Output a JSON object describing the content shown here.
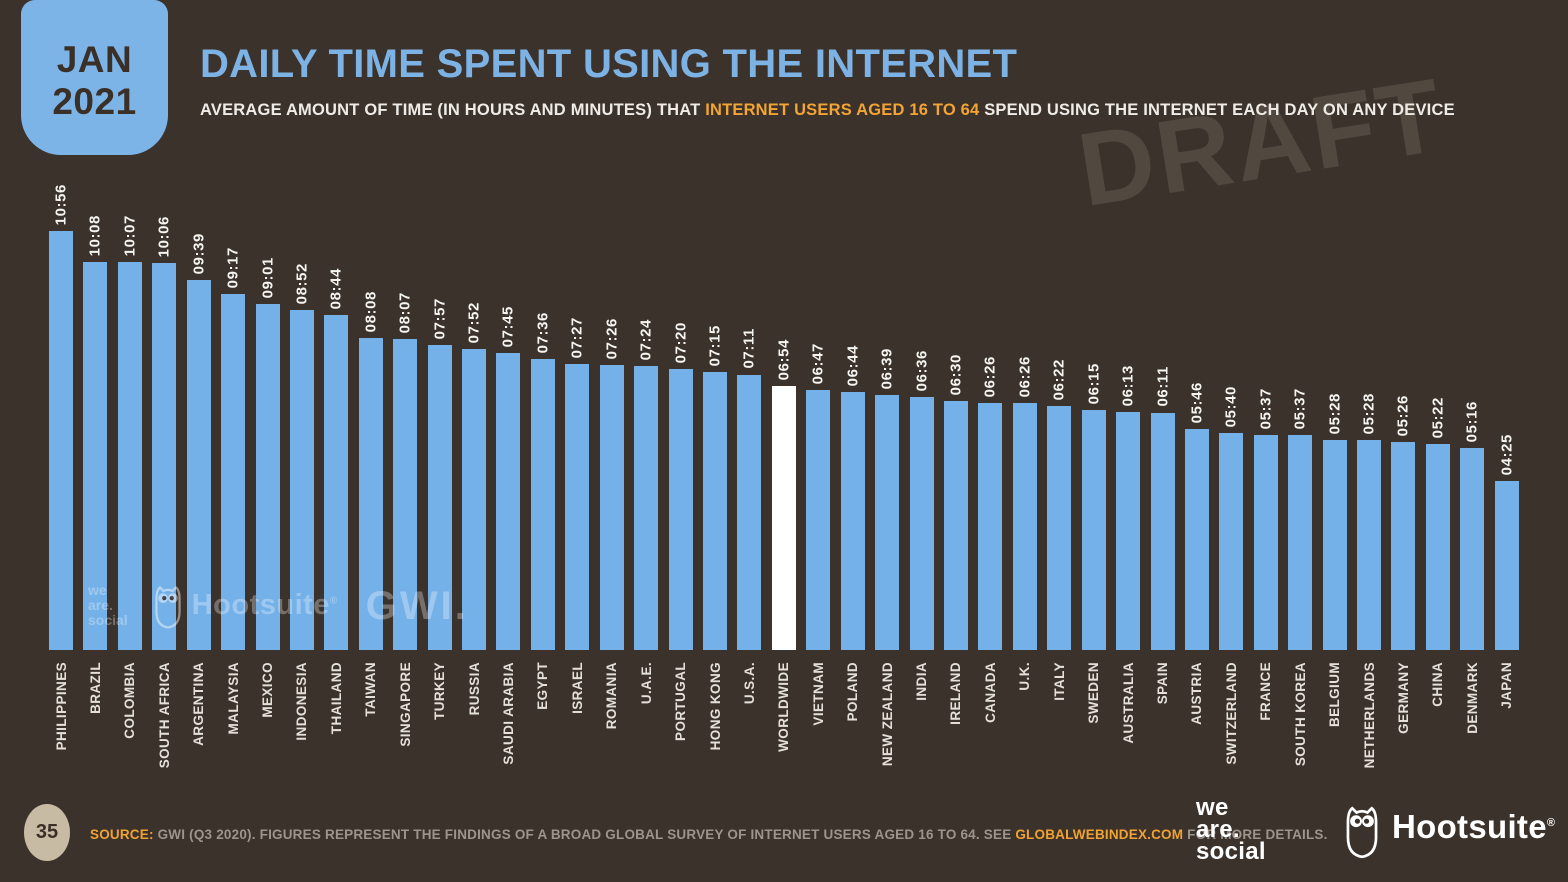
{
  "badge": {
    "month": "JAN",
    "year": "2021"
  },
  "header": {
    "title": "DAILY TIME SPENT USING THE INTERNET",
    "subtitle_prefix": "AVERAGE AMOUNT OF TIME (IN HOURS AND MINUTES) THAT ",
    "subtitle_highlight": "INTERNET USERS AGED 16 TO 64",
    "subtitle_suffix": " SPEND USING THE INTERNET EACH DAY ON ANY DEVICE"
  },
  "draft_watermark": "DRAFT",
  "chart_data": {
    "type": "bar",
    "title": "Daily time spent using the internet (hours:minutes)",
    "unit": "hours:minutes per day",
    "categories": [
      "PHILIPPINES",
      "BRAZIL",
      "COLOMBIA",
      "SOUTH AFRICA",
      "ARGENTINA",
      "MALAYSIA",
      "MEXICO",
      "INDONESIA",
      "THAILAND",
      "TAIWAN",
      "SINGAPORE",
      "TURKEY",
      "RUSSIA",
      "SAUDI ARABIA",
      "EGYPT",
      "ISRAEL",
      "ROMANIA",
      "U.A.E.",
      "PORTUGAL",
      "HONG KONG",
      "U.S.A.",
      "WORLDWIDE",
      "VIETNAM",
      "POLAND",
      "NEW ZEALAND",
      "INDIA",
      "IRELAND",
      "CANADA",
      "U.K.",
      "ITALY",
      "SWEDEN",
      "AUSTRALIA",
      "SPAIN",
      "AUSTRIA",
      "SWITZERLAND",
      "FRANCE",
      "SOUTH KOREA",
      "BELGIUM",
      "NETHERLANDS",
      "GERMANY",
      "CHINA",
      "DENMARK",
      "JAPAN"
    ],
    "values": [
      "10:56",
      "10:08",
      "10:07",
      "10:06",
      "09:39",
      "09:17",
      "09:01",
      "08:52",
      "08:44",
      "08:08",
      "08:07",
      "07:57",
      "07:52",
      "07:45",
      "07:36",
      "07:27",
      "07:26",
      "07:24",
      "07:20",
      "07:15",
      "07:11",
      "06:54",
      "06:47",
      "06:44",
      "06:39",
      "06:36",
      "06:30",
      "06:26",
      "06:26",
      "06:22",
      "06:15",
      "06:13",
      "06:11",
      "05:46",
      "05:40",
      "05:37",
      "05:37",
      "05:28",
      "05:28",
      "05:26",
      "05:22",
      "05:16",
      "04:25"
    ],
    "highlight_category": "WORLDWIDE",
    "bar_color": "#74B1E8",
    "highlight_color": "#FFFFFF",
    "value_label_color": "#F7F5F1",
    "ylim_minutes": [
      0,
      656
    ],
    "grid": false,
    "legend": false
  },
  "chart_watermarks": {
    "wearesocial_line1": "we",
    "wearesocial_line2": "are.",
    "wearesocial_line3": "social",
    "hootsuite": "Hootsuite",
    "registered": "®",
    "gwi": "GWI."
  },
  "footer": {
    "page_number": "35",
    "source_label": "SOURCE:",
    "source_text_1": " GWI (Q3 2020). FIGURES REPRESENT THE FINDINGS OF A BROAD GLOBAL SURVEY OF INTERNET USERS AGED 16 TO 64. SEE ",
    "source_link": "GLOBALWEBINDEX.COM",
    "source_text_2": " FOR MORE DETAILS.",
    "ws_line1": "we",
    "ws_line2": "are.",
    "ws_line3": "social",
    "hootsuite_label": "Hootsuite",
    "registered_mark": "®"
  },
  "colors": {
    "background": "#3B322B",
    "accent_blue": "#7DB2E5",
    "accent_orange": "#F2A434",
    "bar_blue": "#74B1E8",
    "highlight_white": "#FFFFFF",
    "badge_blue": "#7DB4E8",
    "page_circle_beige": "#C8BBA4"
  }
}
